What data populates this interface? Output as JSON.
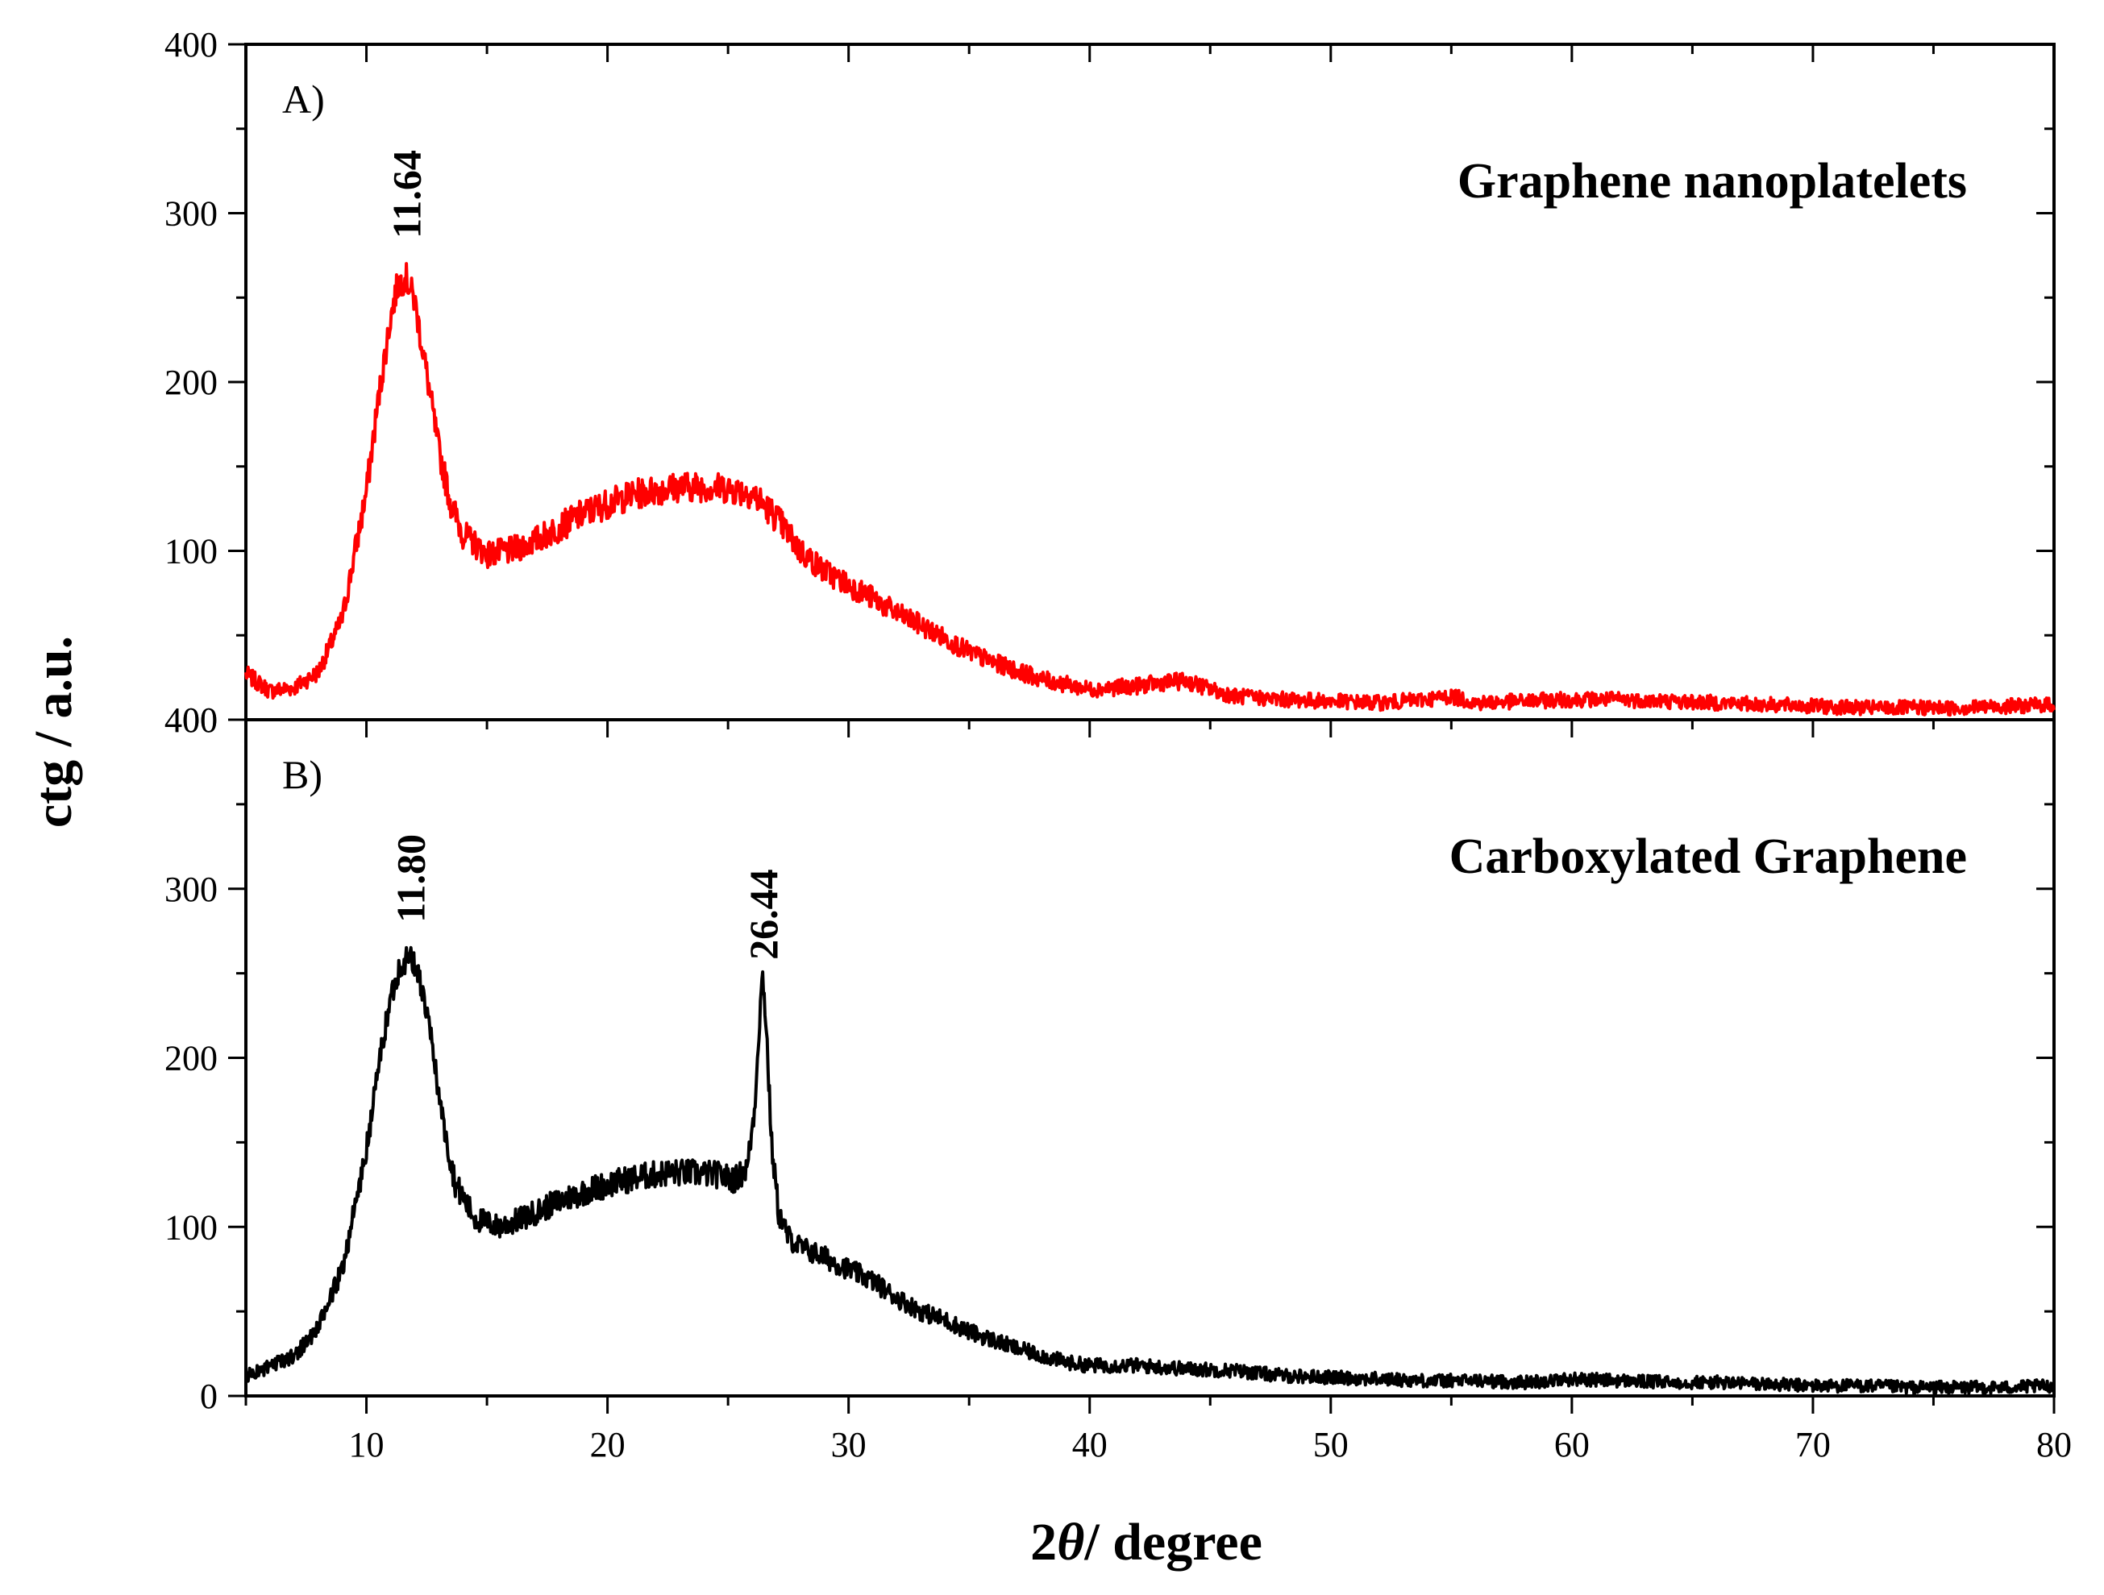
{
  "chart_data": {
    "type": "line",
    "xlabel_prefix": "2",
    "xlabel_symbol": "θ",
    "xlabel_suffix": "/ degree",
    "ylabel": "ctg / a.u.",
    "xlim": [
      5,
      80
    ],
    "x_ticks": [
      10,
      20,
      30,
      40,
      50,
      60,
      70,
      80
    ],
    "panels": [
      {
        "letter": "A)",
        "title": "Graphene nanoplatelets",
        "color": "#ff0000",
        "ylim": [
          0,
          400
        ],
        "y_ticks": [
          {
            "value": 100,
            "label": "100"
          },
          {
            "value": 200,
            "label": "200"
          },
          {
            "value": 300,
            "label": "300"
          },
          {
            "value": 400,
            "label": "400"
          }
        ],
        "bottom_label": "400",
        "noise": 9,
        "seed": 7,
        "series": {
          "name": "Graphene nanoplatelets",
          "x": [
            5,
            6,
            7,
            8,
            9,
            10,
            10.5,
            11,
            11.3,
            11.64,
            12,
            12.5,
            13,
            13.5,
            14,
            15,
            16,
            17,
            18,
            19,
            20,
            21,
            22,
            23,
            24,
            25,
            26,
            27,
            28,
            29,
            30,
            31,
            32,
            33,
            34,
            35,
            36,
            37,
            38,
            39,
            40,
            41,
            42,
            43,
            44,
            45,
            46,
            48,
            50,
            52,
            54,
            55,
            56,
            58,
            60,
            62,
            64,
            66,
            68,
            70,
            72,
            74,
            76,
            78,
            80
          ],
          "y": [
            27,
            17,
            19,
            28,
            60,
            135,
            190,
            238,
            258,
            262,
            248,
            205,
            160,
            128,
            110,
            98,
            100,
            106,
            114,
            122,
            128,
            133,
            136,
            138,
            138,
            137,
            134,
            120,
            100,
            88,
            80,
            72,
            63,
            56,
            48,
            40,
            34,
            29,
            24,
            21,
            18,
            19,
            20,
            22,
            23,
            18,
            14,
            12,
            11,
            10,
            12,
            14,
            10,
            11,
            12,
            12,
            11,
            10,
            9,
            8,
            7,
            7,
            7,
            8,
            9
          ]
        },
        "annotations": [
          {
            "text": "11.64",
            "x": 11.64,
            "y": 285
          }
        ]
      },
      {
        "letter": "B)",
        "title": "Carboxylated Graphene",
        "color": "#000000",
        "ylim": [
          0,
          400
        ],
        "y_ticks": [
          {
            "value": 0,
            "label": "0"
          },
          {
            "value": 100,
            "label": "100"
          },
          {
            "value": 200,
            "label": "200"
          },
          {
            "value": 300,
            "label": "300"
          },
          {
            "value": 400,
            "label": "400"
          }
        ],
        "noise": 8,
        "seed": 23,
        "series": {
          "name": "Carboxylated Graphene",
          "x": [
            5,
            6,
            7,
            8,
            9,
            10,
            10.5,
            11,
            11.4,
            11.8,
            12.2,
            12.7,
            13.2,
            13.7,
            14.5,
            15.5,
            16.5,
            17.5,
            18.5,
            19.5,
            20.5,
            21.5,
            22.5,
            23.5,
            24.5,
            25.3,
            25.8,
            26.1,
            26.3,
            26.44,
            26.6,
            26.8,
            27.1,
            27.5,
            28,
            29,
            30,
            31,
            32,
            33,
            34,
            35,
            36,
            37,
            38,
            39,
            40,
            42,
            44,
            46,
            48,
            50,
            52,
            54,
            56,
            58,
            60,
            62,
            64,
            66,
            68,
            70,
            72,
            74,
            76,
            78,
            80
          ],
          "y": [
            12,
            17,
            24,
            40,
            75,
            145,
            195,
            235,
            255,
            260,
            248,
            210,
            160,
            125,
            105,
            100,
            105,
            112,
            118,
            123,
            127,
            130,
            132,
            132,
            131,
            128,
            135,
            170,
            222,
            250,
            215,
            150,
            108,
            94,
            88,
            82,
            75,
            68,
            58,
            50,
            45,
            38,
            33,
            28,
            24,
            20,
            18,
            18,
            16,
            15,
            12,
            11,
            10,
            9,
            9,
            8,
            10,
            9,
            8,
            8,
            7,
            6,
            6,
            5,
            5,
            5,
            6
          ]
        },
        "annotations": [
          {
            "text": "11.80",
            "x": 11.8,
            "y": 280
          },
          {
            "text": "26.44",
            "x": 26.44,
            "y": 258
          }
        ]
      }
    ]
  }
}
